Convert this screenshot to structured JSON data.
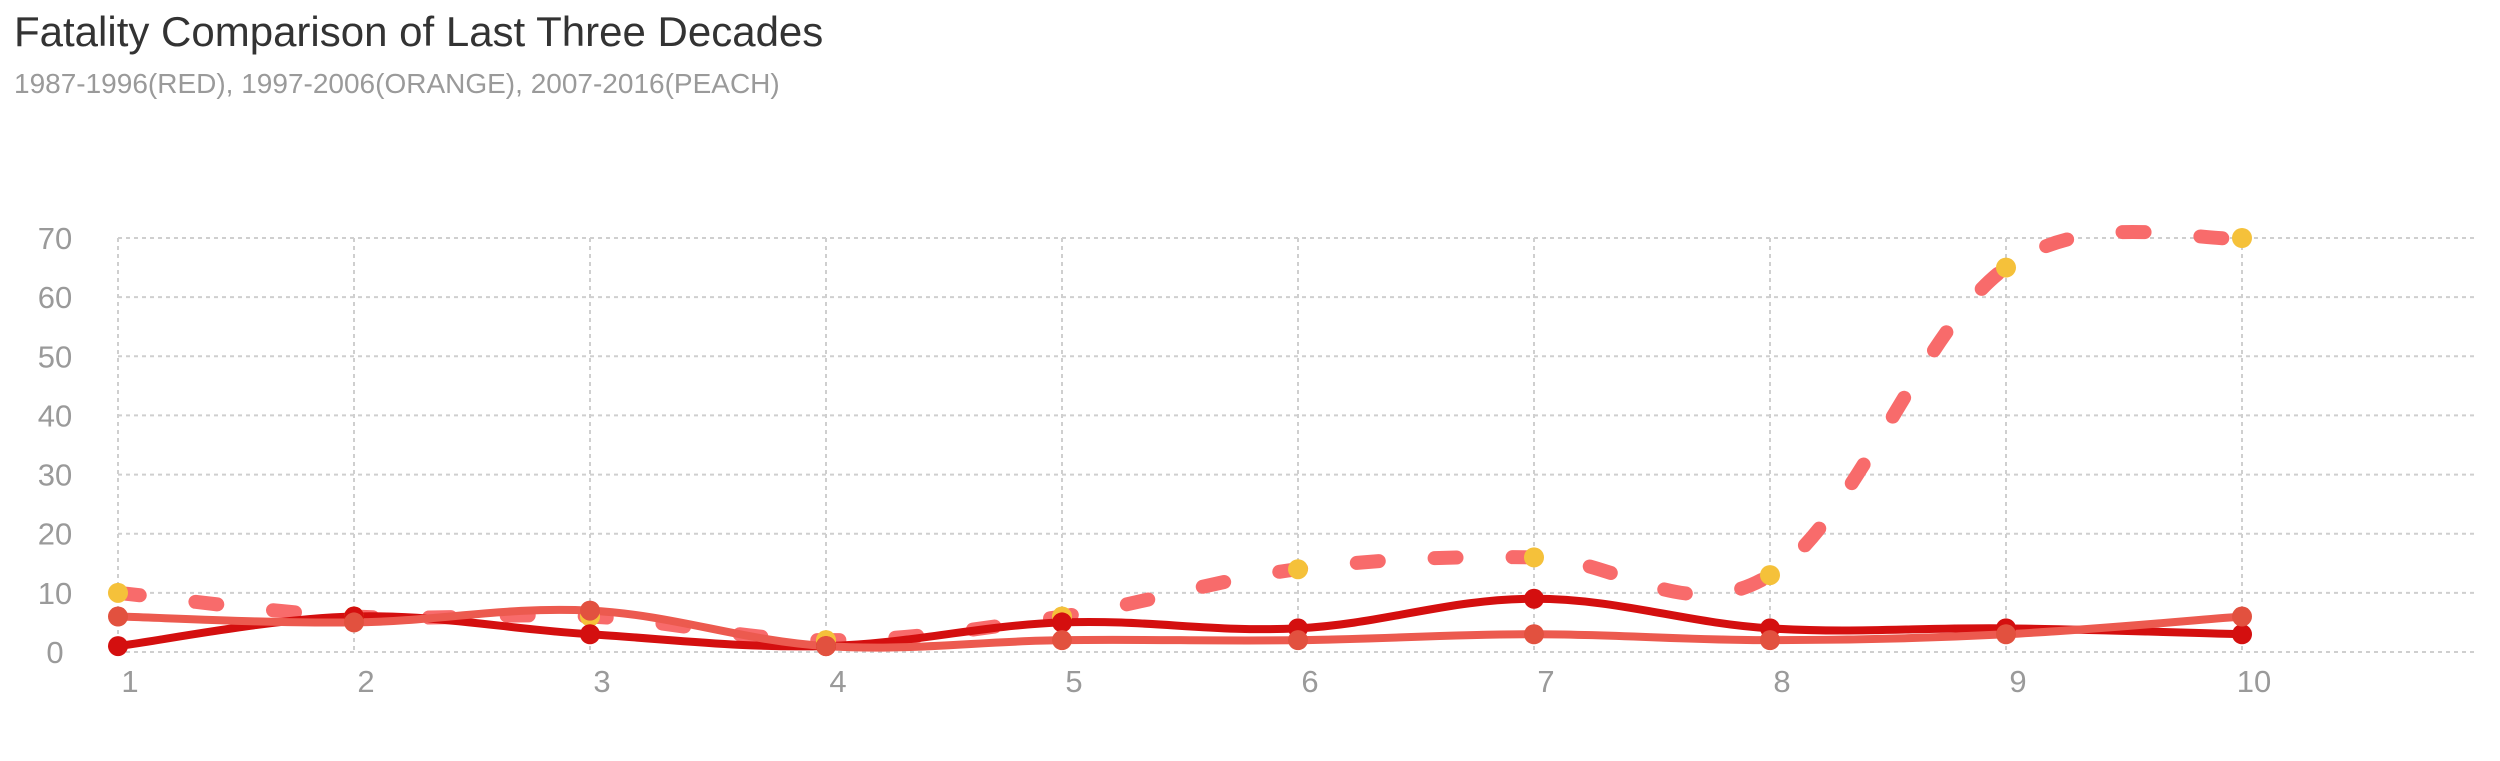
{
  "chart_data": {
    "type": "line",
    "title": "Fatality Comparison of Last Three Decades",
    "subtitle": "1987-1996(RED), 1997-2006(ORANGE), 2007-2016(PEACH)",
    "x": [
      1,
      2,
      3,
      4,
      5,
      6,
      7,
      8,
      9,
      10
    ],
    "x_ticks": [
      "1",
      "2",
      "3",
      "4",
      "5",
      "6",
      "7",
      "8",
      "9",
      "10"
    ],
    "y_ticks": [
      "0",
      "10",
      "20",
      "30",
      "40",
      "50",
      "60",
      "70"
    ],
    "ylim": [
      0,
      70
    ],
    "grid": true,
    "series": [
      {
        "values": [
          1,
          6,
          3,
          1,
          5,
          4,
          9,
          4,
          4,
          3
        ],
        "color": "#d40f0f",
        "marker_color": "#d40f0f",
        "line_style": "solid"
      },
      {
        "values": [
          6,
          5,
          7,
          1,
          2,
          2,
          3,
          2,
          3,
          6
        ],
        "color": "#ec5a4f",
        "marker_color": "#e2513f",
        "line_style": "solid"
      },
      {
        "values": [
          10,
          6,
          6,
          2,
          6,
          14,
          16,
          13,
          65,
          70
        ],
        "color": "#f86b6b",
        "marker_color": "#f5c13a",
        "line_style": "dashed"
      }
    ]
  }
}
